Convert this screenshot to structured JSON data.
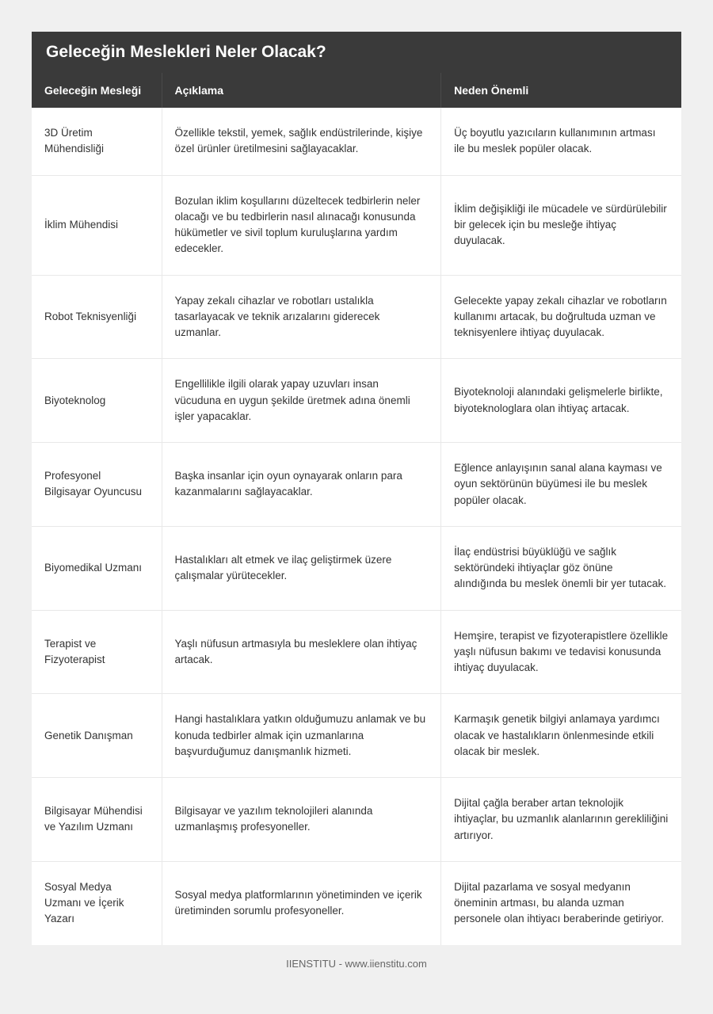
{
  "title": "Geleceğin Meslekleri Neler Olacak?",
  "columns": {
    "col1": "Geleceğin Mesleği",
    "col2": "Açıklama",
    "col3": "Neden Önemli"
  },
  "rows": [
    {
      "profession": "3D Üretim Mühendisliği",
      "description": "Özellikle tekstil, yemek, sağlık endüstrilerinde, kişiye özel ürünler üretilmesini sağlayacaklar.",
      "importance": "Üç boyutlu yazıcıların kullanımının artması ile bu meslek popüler olacak."
    },
    {
      "profession": "İklim Mühendisi",
      "description": "Bozulan iklim koşullarını düzeltecek tedbirlerin neler olacağı ve bu tedbirlerin nasıl alınacağı konusunda hükümetler ve sivil toplum kuruluşlarına yardım edecekler.",
      "importance": "İklim değişikliği ile mücadele ve sürdürülebilir bir gelecek için bu mesleğe ihtiyaç duyulacak."
    },
    {
      "profession": "Robot Teknisyenliği",
      "description": "Yapay zekalı cihazlar ve robotları ustalıkla tasarlayacak ve teknik arızalarını giderecek uzmanlar.",
      "importance": "Gelecekte yapay zekalı cihazlar ve robotların kullanımı artacak, bu doğrultuda uzman ve teknisyenlere ihtiyaç duyulacak."
    },
    {
      "profession": "Biyoteknolog",
      "description": "Engellilikle ilgili olarak yapay uzuvları insan vücuduna en uygun şekilde üretmek adına önemli işler yapacaklar.",
      "importance": "Biyoteknoloji alanındaki gelişmelerle birlikte, biyoteknologlara olan ihtiyaç artacak."
    },
    {
      "profession": "Profesyonel Bilgisayar Oyuncusu",
      "description": "Başka insanlar için oyun oynayarak onların para kazanmalarını sağlayacaklar.",
      "importance": "Eğlence anlayışının sanal alana kayması ve oyun sektörünün büyümesi ile bu meslek popüler olacak."
    },
    {
      "profession": "Biyomedikal Uzmanı",
      "description": "Hastalıkları alt etmek ve ilaç geliştirmek üzere çalışmalar yürütecekler.",
      "importance": "İlaç endüstrisi büyüklüğü ve sağlık sektöründeki ihtiyaçlar göz önüne alındığında bu meslek önemli bir yer tutacak."
    },
    {
      "profession": "Terapist ve Fizyoterapist",
      "description": "Yaşlı nüfusun artmasıyla bu mesleklere olan ihtiyaç artacak.",
      "importance": "Hemşire, terapist ve fizyoterapistlere özellikle yaşlı nüfusun bakımı ve tedavisi konusunda ihtiyaç duyulacak."
    },
    {
      "profession": "Genetik Danışman",
      "description": "Hangi hastalıklara yatkın olduğumuzu anlamak ve bu konuda tedbirler almak için uzmanlarına başvurduğumuz danışmanlık hizmeti.",
      "importance": "Karmaşık genetik bilgiyi anlamaya yardımcı olacak ve hastalıkların önlenmesinde etkili olacak bir meslek."
    },
    {
      "profession": "Bilgisayar Mühendisi ve Yazılım Uzmanı",
      "description": "Bilgisayar ve yazılım teknolojileri alanında uzmanlaşmış profesyoneller.",
      "importance": "Dijital çağla beraber artan teknolojik ihtiyaçlar, bu uzmanlık alanlarının gerekliliğini artırıyor."
    },
    {
      "profession": "Sosyal Medya Uzmanı ve İçerik Yazarı",
      "description": "Sosyal medya platformlarının yönetiminden ve içerik üretiminden sorumlu profesyoneller.",
      "importance": "Dijital pazarlama ve sosyal medyanın öneminin artması, bu alanda uzman personele olan ihtiyacı beraberinde getiriyor."
    }
  ],
  "footer": "IIENSTITU - www.iienstitu.com",
  "styles": {
    "header_bg": "#3a3a3a",
    "header_text": "#ffffff",
    "body_bg": "#f0f0f0",
    "border_color": "#e8e8e8",
    "text_color": "#333333",
    "footer_color": "#666666"
  }
}
